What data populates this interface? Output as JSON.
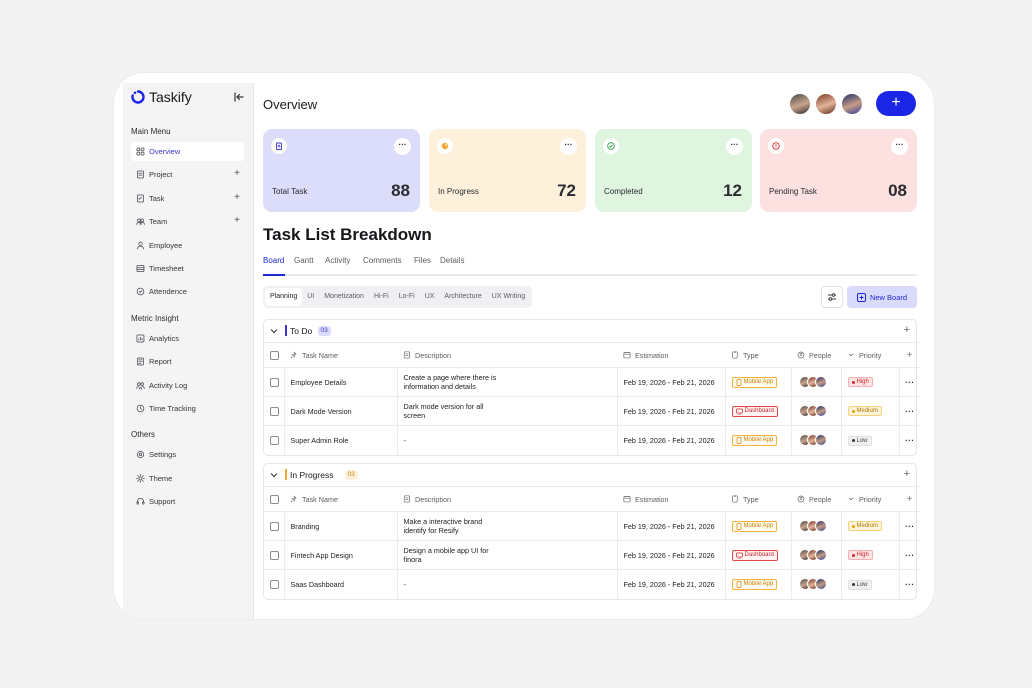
{
  "app": {
    "name": "Taskify"
  },
  "sidebar": {
    "sections": [
      {
        "title": "Main Menu",
        "items": [
          {
            "label": "Overview",
            "icon": "grid-icon",
            "active": true,
            "plus": false
          },
          {
            "label": "Project",
            "icon": "document-icon",
            "active": false,
            "plus": true
          },
          {
            "label": "Task",
            "icon": "task-icon",
            "active": false,
            "plus": true
          },
          {
            "label": "Team",
            "icon": "team-icon",
            "active": false,
            "plus": true
          },
          {
            "label": "Employee",
            "icon": "user-icon",
            "active": false,
            "plus": false
          },
          {
            "label": "Timesheet",
            "icon": "sheet-icon",
            "active": false,
            "plus": false
          },
          {
            "label": "Attendence",
            "icon": "clock-check-icon",
            "active": false,
            "plus": false
          }
        ]
      },
      {
        "title": "Metric Insight",
        "items": [
          {
            "label": "Analytics",
            "icon": "analytics-icon",
            "active": false,
            "plus": false
          },
          {
            "label": "Report",
            "icon": "report-icon",
            "active": false,
            "plus": false
          },
          {
            "label": "Activity Log",
            "icon": "activity-icon",
            "active": false,
            "plus": false
          },
          {
            "label": "Time Tracking",
            "icon": "time-icon",
            "active": false,
            "plus": false
          }
        ]
      },
      {
        "title": "Others",
        "items": [
          {
            "label": "Settings",
            "icon": "gear-icon",
            "active": false,
            "plus": false
          },
          {
            "label": "Theme",
            "icon": "sun-icon",
            "active": false,
            "plus": false
          },
          {
            "label": "Support",
            "icon": "headset-icon",
            "active": false,
            "plus": false
          }
        ]
      }
    ]
  },
  "header": {
    "title": "Overview",
    "add_label": "+"
  },
  "stats": [
    {
      "label": "Total Task",
      "value": "88",
      "bg": "#dcdcfb",
      "icon": "clipboard-icon",
      "icon_color": "#3d37c8"
    },
    {
      "label": "In Progress",
      "value": "72",
      "bg": "#fdf1dc",
      "icon": "progress-icon",
      "icon_color": "#f1a82e"
    },
    {
      "label": "Completed",
      "value": "12",
      "bg": "#dff5df",
      "icon": "check-circle-icon",
      "icon_color": "#27a34a"
    },
    {
      "label": "Pending Task",
      "value": "08",
      "bg": "#fde1e1",
      "icon": "alert-icon",
      "icon_color": "#d92b2f"
    }
  ],
  "breakdown": {
    "title": "Task List Breakdown",
    "tabs": [
      "Board",
      "Gantt",
      "Activity",
      "Comments",
      "Files",
      "Details"
    ],
    "chips": [
      "Planning",
      "UI",
      "Monetization",
      "Hi-Fi",
      "Lo-Fi",
      "UX",
      "Architecture",
      "UX Writing"
    ],
    "new_board_label": "New Board"
  },
  "columns": [
    "Task Name",
    "Description",
    "Estimation",
    "Type",
    "People",
    "Priority"
  ],
  "groups": [
    {
      "name": "To Do",
      "count": "03",
      "color": "#3d37c8",
      "count_bg": "#dcdcfb",
      "count_color": "#3d37c8",
      "rows": [
        {
          "task": "Employee Details",
          "desc1": "Create a page where there is",
          "desc2": "information and details",
          "est": "Feb 19, 2026 - Feb 21, 2026",
          "type": "Mobile App",
          "priority": "High"
        },
        {
          "task": "Dark Mode Version",
          "desc1": "Dark mode version for all",
          "desc2": "screen",
          "est": "Feb 19, 2026 - Feb 21, 2026",
          "type": "Dashboard",
          "priority": "Medium"
        },
        {
          "task": "Super Admin Role",
          "desc1": "-",
          "desc2": "",
          "est": "Feb 19, 2026 - Feb 21, 2026",
          "type": "Mobile App",
          "priority": "Low"
        }
      ]
    },
    {
      "name": "In Progress",
      "count": "03",
      "color": "#f1a82e",
      "count_bg": "#fdf1dc",
      "count_color": "#c98500",
      "rows": [
        {
          "task": "Branding",
          "desc1": "Make a interactive brand",
          "desc2": "identify for Resify",
          "est": "Feb 19, 2026 - Feb 21, 2026",
          "type": "Mobile App",
          "priority": "Medium"
        },
        {
          "task": "Fintech App Design",
          "desc1": "Design a mobile app UI for",
          "desc2": "finora",
          "est": "Feb 19, 2026 - Feb 21, 2026",
          "type": "Dashboard",
          "priority": "High"
        },
        {
          "task": "Saas Dashboard",
          "desc1": "-",
          "desc2": "",
          "est": "Feb 19, 2026 - Feb 21, 2026",
          "type": "Mobile App",
          "priority": "Low"
        }
      ]
    }
  ]
}
